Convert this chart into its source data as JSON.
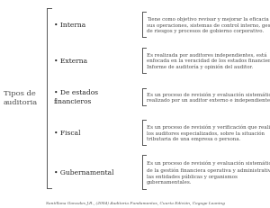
{
  "title_left": "Tipos de\nauditoria",
  "categories": [
    "Interna",
    "Externa",
    "De estados\nfinancieros",
    "Fiscal",
    "Gubernamental"
  ],
  "descriptions": [
    "Tiene como objetivo revisar y mejorar la eficacia de\nsus operaciones, sistemas de control interno, gestión\nde riesgos y procesos de gobierno corporativo.",
    "Es realizada por auditores independientes, está\nenfocada en la veracidad de los estados financieros\nInforme de auditoría y opinión del auditor.",
    "Es un proceso de revisión y evaluación sistemático\nrealizado por un auditor externo e independiente.",
    "Es un proceso de revisión y verificación que realizan\nlos auditores especializados, sobre la situación\ntributaria de una empresa o persona.",
    "Es un proceso de revisión y evaluación sistemática\nde la gestión financiera operativa y administrativa de\nlas entidades públicas y organismos\ngubernamentales."
  ],
  "footnote": "Santillana Gonzales J.R., (2004) Auditoria Fundamentos, Cuarta Edición, Cegage Leaning",
  "bg_color": "#ffffff",
  "text_color": "#4a4a4a",
  "bracket_color": "#555555",
  "bullet_color": "#222222",
  "fig_width": 3.0,
  "fig_height": 2.32,
  "dpi": 100
}
